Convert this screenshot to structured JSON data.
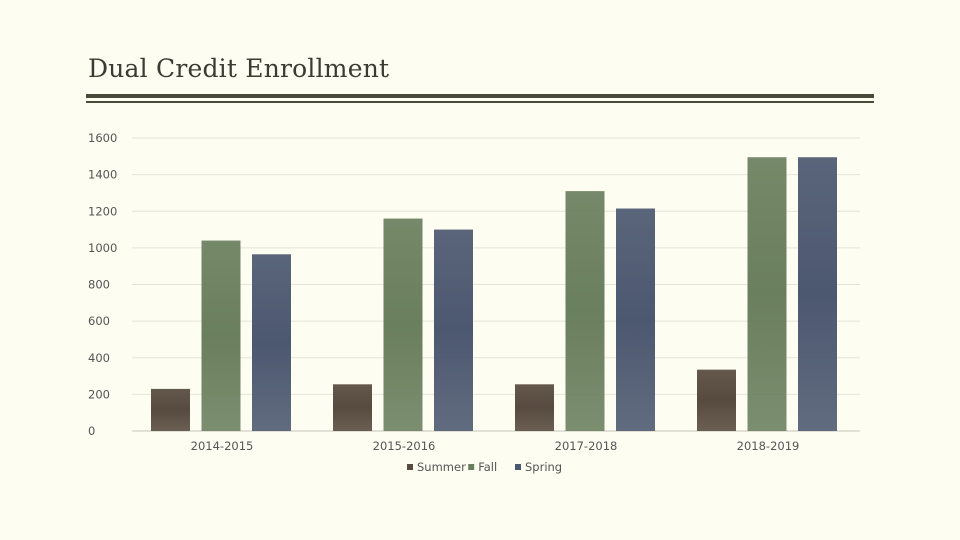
{
  "title": "Dual Credit Enrollment",
  "chart_data": {
    "type": "bar",
    "categories": [
      "2014-2015",
      "2015-2016",
      "2017-2018",
      "2018-2019"
    ],
    "series": [
      {
        "name": "Summer",
        "values": [
          230,
          255,
          255,
          335
        ],
        "color": "#574a3f"
      },
      {
        "name": "Fall",
        "values": [
          1040,
          1160,
          1310,
          1495
        ],
        "color": "#6a7f5e"
      },
      {
        "name": "Spring",
        "values": [
          965,
          1100,
          1215,
          1495
        ],
        "color": "#4c5870"
      }
    ],
    "yticks": [
      "0",
      "200",
      "400",
      "600",
      "800",
      "1000",
      "1200",
      "1400",
      "1600"
    ],
    "ylim": [
      0,
      1600
    ],
    "grid": true,
    "legend": "bottom-center"
  }
}
